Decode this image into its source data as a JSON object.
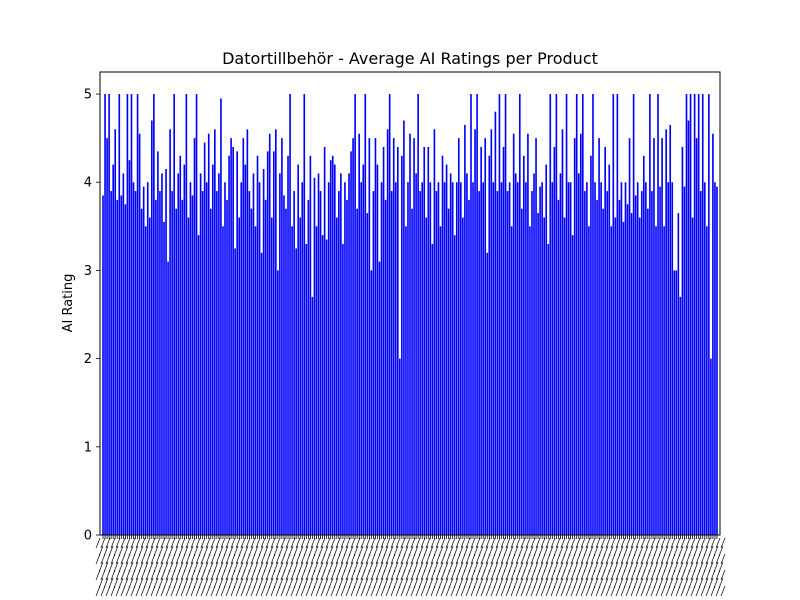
{
  "chart_data": {
    "type": "bar",
    "title": "Datortillbehör - Average AI Ratings per Product",
    "xlabel": "",
    "ylabel": "AI Rating",
    "ylim": [
      0,
      5.25
    ],
    "yticks": [
      "0",
      "1",
      "2",
      "3",
      "4",
      "5"
    ],
    "grid": false,
    "legend": "none",
    "bar_color": "#0000ff",
    "x_tick_label_color": "#000000",
    "values": [
      3.85,
      5.0,
      4.5,
      5.0,
      3.9,
      4.2,
      4.6,
      3.8,
      5.0,
      3.85,
      4.1,
      3.75,
      5.0,
      4.25,
      5.0,
      4.0,
      3.9,
      5.0,
      4.55,
      3.7,
      3.95,
      3.5,
      4.0,
      3.6,
      4.7,
      5.0,
      3.8,
      4.35,
      3.9,
      4.1,
      3.55,
      4.15,
      3.1,
      4.6,
      3.9,
      5.0,
      3.7,
      4.1,
      4.3,
      3.8,
      4.2,
      5.0,
      3.6,
      4.0,
      3.85,
      4.5,
      5.0,
      3.4,
      4.1,
      3.9,
      4.45,
      4.0,
      4.55,
      3.7,
      4.2,
      4.6,
      3.9,
      4.1,
      4.95,
      3.5,
      4.0,
      3.8,
      4.3,
      4.5,
      4.4,
      3.25,
      4.35,
      3.6,
      4.0,
      4.5,
      4.2,
      4.6,
      3.9,
      3.7,
      4.1,
      3.5,
      4.3,
      4.0,
      3.2,
      4.15,
      3.8,
      4.35,
      4.55,
      3.6,
      4.35,
      4.6,
      3.0,
      4.1,
      4.5,
      3.85,
      3.7,
      4.3,
      5.0,
      3.5,
      3.9,
      3.25,
      4.2,
      3.6,
      4.0,
      5.0,
      3.3,
      3.8,
      4.3,
      2.7,
      4.05,
      3.5,
      4.1,
      3.9,
      3.4,
      4.4,
      3.35,
      4.0,
      4.25,
      4.3,
      4.2,
      3.6,
      3.9,
      4.1,
      3.3,
      4.0,
      3.8,
      4.1,
      4.35,
      4.5,
      5.0,
      3.7,
      4.55,
      4.0,
      4.2,
      5.0,
      3.65,
      4.5,
      3.0,
      3.9,
      4.5,
      4.2,
      3.1,
      4.0,
      4.4,
      3.8,
      4.6,
      5.0,
      3.9,
      4.5,
      4.0,
      4.4,
      2.0,
      4.3,
      4.7,
      3.5,
      4.0,
      4.55,
      3.7,
      4.5,
      4.1,
      5.0,
      3.9,
      4.0,
      4.4,
      3.6,
      4.4,
      4.0,
      3.3,
      4.6,
      3.9,
      4.0,
      3.5,
      4.3,
      4.0,
      4.2,
      3.7,
      4.1,
      4.0,
      3.4,
      4.0,
      4.5,
      4.0,
      3.6,
      4.65,
      4.1,
      3.8,
      5.0,
      4.0,
      4.6,
      5.0,
      3.9,
      4.4,
      4.0,
      4.5,
      3.2,
      4.3,
      4.6,
      4.0,
      4.8,
      3.9,
      5.0,
      4.0,
      4.4,
      5.0,
      3.9,
      4.0,
      3.5,
      4.55,
      4.1,
      4.0,
      5.0,
      3.7,
      4.3,
      4.0,
      4.55,
      3.5,
      3.9,
      4.1,
      4.5,
      3.65,
      3.95,
      4.0,
      3.6,
      4.2,
      3.3,
      5.0,
      4.0,
      4.4,
      5.0,
      3.8,
      4.1,
      4.6,
      3.6,
      5.0,
      4.0,
      4.0,
      3.4,
      4.5,
      5.0,
      4.1,
      4.55,
      5.0,
      3.9,
      4.0,
      3.5,
      4.3,
      5.0,
      4.0,
      3.8,
      4.5,
      4.0,
      3.7,
      4.4,
      3.9,
      4.2,
      3.5,
      5.0,
      3.6,
      5.0,
      3.8,
      4.0,
      3.55,
      4.0,
      3.75,
      4.5,
      3.65,
      5.0,
      3.85,
      4.0,
      3.6,
      3.9,
      4.3,
      4.0,
      3.7,
      5.0,
      3.9,
      4.5,
      3.5,
      5.0,
      3.95,
      4.5,
      3.5,
      4.6,
      4.0,
      4.65,
      4.0,
      3.0,
      3.0,
      3.65,
      2.7,
      4.4,
      3.95,
      5.0,
      4.7,
      5.0,
      3.6,
      5.0,
      4.5,
      5.0,
      3.9,
      5.0,
      4.0,
      3.5,
      5.0,
      2.0,
      4.55,
      4.0,
      3.95
    ]
  }
}
